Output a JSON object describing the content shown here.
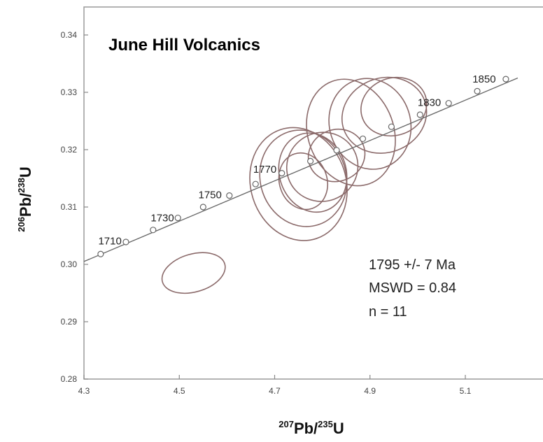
{
  "chart_data": {
    "type": "scatter",
    "title": "June Hill Volcanics",
    "xlabel": {
      "mass1": "207",
      "element1": "Pb/",
      "mass2": "235",
      "element2": "U"
    },
    "ylabel": {
      "mass1": "206",
      "element1": "Pb/",
      "mass2": "238",
      "element2": "U"
    },
    "xlim": [
      4.3,
      5.2
    ],
    "ylim": [
      0.28,
      0.345
    ],
    "x_ticks": [
      4.3,
      4.5,
      4.7,
      4.9,
      5.1
    ],
    "x_tick_labels": [
      "4.3",
      "4.5",
      "4.7",
      "4.9",
      "5.1"
    ],
    "y_ticks": [
      0.28,
      0.29,
      0.3,
      0.31,
      0.32,
      0.33,
      0.34
    ],
    "y_tick_labels": [
      "0.28",
      "0.29",
      "0.30",
      "0.31",
      "0.32",
      "0.33",
      "0.34"
    ],
    "grid": false,
    "concordia": {
      "line": [
        [
          4.3,
          0.3005
        ],
        [
          5.21,
          0.3325
        ]
      ],
      "markers": [
        {
          "age": 1710,
          "x": 4.335,
          "y": 0.3018
        },
        {
          "age": 1720,
          "x": 4.388,
          "y": 0.3039
        },
        {
          "age": 1730,
          "x": 4.445,
          "y": 0.306
        },
        {
          "age": 1740,
          "x": 4.497,
          "y": 0.3081
        },
        {
          "age": 1750,
          "x": 4.55,
          "y": 0.31
        },
        {
          "age": 1760,
          "x": 4.605,
          "y": 0.312
        },
        {
          "age": 1770,
          "x": 4.66,
          "y": 0.314
        },
        {
          "age": 1780,
          "x": 4.715,
          "y": 0.3159
        },
        {
          "age": 1790,
          "x": 4.775,
          "y": 0.318
        },
        {
          "age": 1800,
          "x": 4.83,
          "y": 0.3199
        },
        {
          "age": 1810,
          "x": 4.885,
          "y": 0.3219
        },
        {
          "age": 1820,
          "x": 4.945,
          "y": 0.324
        },
        {
          "age": 1830,
          "x": 5.005,
          "y": 0.3261
        },
        {
          "age": 1840,
          "x": 5.065,
          "y": 0.3281
        },
        {
          "age": 1850,
          "x": 5.125,
          "y": 0.3302
        },
        {
          "age": 1860,
          "x": 5.185,
          "y": 0.3323
        }
      ],
      "labels": [
        {
          "text": "1710",
          "x": 4.33,
          "y": 0.3035
        },
        {
          "text": "1730",
          "x": 4.44,
          "y": 0.3075
        },
        {
          "text": "1750",
          "x": 4.54,
          "y": 0.3115
        },
        {
          "text": "1770",
          "x": 4.655,
          "y": 0.316
        },
        {
          "text": "1830",
          "x": 5.0,
          "y": 0.3276
        },
        {
          "text": "1850",
          "x": 5.115,
          "y": 0.3317
        }
      ]
    },
    "ellipses": [
      {
        "cx": 4.53,
        "cy": 0.2985,
        "rx": 0.068,
        "ry": 0.0033,
        "angle": -16
      },
      {
        "cx": 4.75,
        "cy": 0.314,
        "rx": 0.1,
        "ry": 0.01,
        "angle": -18
      },
      {
        "cx": 4.76,
        "cy": 0.315,
        "rx": 0.09,
        "ry": 0.0085,
        "angle": -18
      },
      {
        "cx": 4.78,
        "cy": 0.316,
        "rx": 0.07,
        "ry": 0.007,
        "angle": -18
      },
      {
        "cx": 4.76,
        "cy": 0.3145,
        "rx": 0.05,
        "ry": 0.005,
        "angle": -18
      },
      {
        "cx": 4.8,
        "cy": 0.317,
        "rx": 0.075,
        "ry": 0.006,
        "angle": -20
      },
      {
        "cx": 4.86,
        "cy": 0.323,
        "rx": 0.09,
        "ry": 0.0095,
        "angle": -20
      },
      {
        "cx": 4.9,
        "cy": 0.3245,
        "rx": 0.085,
        "ry": 0.008,
        "angle": -18
      },
      {
        "cx": 4.93,
        "cy": 0.326,
        "rx": 0.09,
        "ry": 0.0065,
        "angle": -20
      },
      {
        "cx": 4.95,
        "cy": 0.3275,
        "rx": 0.07,
        "ry": 0.005,
        "angle": -20
      },
      {
        "cx": 4.83,
        "cy": 0.319,
        "rx": 0.06,
        "ry": 0.0045,
        "angle": -20
      }
    ],
    "annotations": [
      "1795 +/- 7 Ma",
      "MSWD = 0.84",
      "n = 11"
    ],
    "colors": {
      "ellipse": "#8b6a6a",
      "concordia": "#666666",
      "axis": "#888888"
    }
  }
}
